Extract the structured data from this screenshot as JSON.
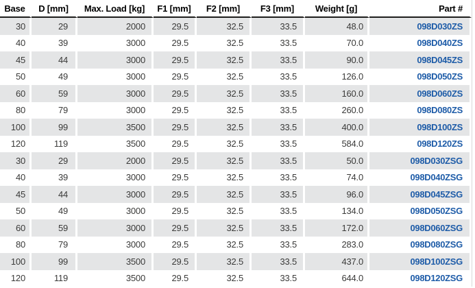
{
  "table": {
    "columns": [
      {
        "key": "base",
        "label": "Base"
      },
      {
        "key": "d",
        "label": "D [mm]"
      },
      {
        "key": "max_load",
        "label": "Max. Load [kg]"
      },
      {
        "key": "f1",
        "label": "F1 [mm]"
      },
      {
        "key": "f2",
        "label": "F2 [mm]"
      },
      {
        "key": "f3",
        "label": "F3 [mm]"
      },
      {
        "key": "weight",
        "label": "Weight [g]"
      },
      {
        "key": "part",
        "label": "Part #"
      }
    ],
    "rows": [
      {
        "base": "30",
        "d": "29",
        "max_load": "2000",
        "f1": "29.5",
        "f2": "32.5",
        "f3": "33.5",
        "weight": "48.0",
        "part": "098D030ZS"
      },
      {
        "base": "40",
        "d": "39",
        "max_load": "3000",
        "f1": "29.5",
        "f2": "32.5",
        "f3": "33.5",
        "weight": "70.0",
        "part": "098D040ZS"
      },
      {
        "base": "45",
        "d": "44",
        "max_load": "3000",
        "f1": "29.5",
        "f2": "32.5",
        "f3": "33.5",
        "weight": "90.0",
        "part": "098D045ZS"
      },
      {
        "base": "50",
        "d": "49",
        "max_load": "3000",
        "f1": "29.5",
        "f2": "32.5",
        "f3": "33.5",
        "weight": "126.0",
        "part": "098D050ZS"
      },
      {
        "base": "60",
        "d": "59",
        "max_load": "3000",
        "f1": "29.5",
        "f2": "32.5",
        "f3": "33.5",
        "weight": "160.0",
        "part": "098D060ZS"
      },
      {
        "base": "80",
        "d": "79",
        "max_load": "3000",
        "f1": "29.5",
        "f2": "32.5",
        "f3": "33.5",
        "weight": "260.0",
        "part": "098D080ZS"
      },
      {
        "base": "100",
        "d": "99",
        "max_load": "3500",
        "f1": "29.5",
        "f2": "32.5",
        "f3": "33.5",
        "weight": "400.0",
        "part": "098D100ZS"
      },
      {
        "base": "120",
        "d": "119",
        "max_load": "3500",
        "f1": "29.5",
        "f2": "32.5",
        "f3": "33.5",
        "weight": "584.0",
        "part": "098D120ZS"
      },
      {
        "base": "30",
        "d": "29",
        "max_load": "2000",
        "f1": "29.5",
        "f2": "32.5",
        "f3": "33.5",
        "weight": "50.0",
        "part": "098D030ZSG"
      },
      {
        "base": "40",
        "d": "39",
        "max_load": "3000",
        "f1": "29.5",
        "f2": "32.5",
        "f3": "33.5",
        "weight": "74.0",
        "part": "098D040ZSG"
      },
      {
        "base": "45",
        "d": "44",
        "max_load": "3000",
        "f1": "29.5",
        "f2": "32.5",
        "f3": "33.5",
        "weight": "96.0",
        "part": "098D045ZSG"
      },
      {
        "base": "50",
        "d": "49",
        "max_load": "3000",
        "f1": "29.5",
        "f2": "32.5",
        "f3": "33.5",
        "weight": "134.0",
        "part": "098D050ZSG"
      },
      {
        "base": "60",
        "d": "59",
        "max_load": "3000",
        "f1": "29.5",
        "f2": "32.5",
        "f3": "33.5",
        "weight": "172.0",
        "part": "098D060ZSG"
      },
      {
        "base": "80",
        "d": "79",
        "max_load": "3000",
        "f1": "29.5",
        "f2": "32.5",
        "f3": "33.5",
        "weight": "283.0",
        "part": "098D080ZSG"
      },
      {
        "base": "100",
        "d": "99",
        "max_load": "3500",
        "f1": "29.5",
        "f2": "32.5",
        "f3": "33.5",
        "weight": "437.0",
        "part": "098D100ZSG"
      },
      {
        "base": "120",
        "d": "119",
        "max_load": "3500",
        "f1": "29.5",
        "f2": "32.5",
        "f3": "33.5",
        "weight": "644.0",
        "part": "098D120ZSG"
      }
    ]
  },
  "colors": {
    "stripe": "#e4e5e6",
    "part_link": "#1e5ca8",
    "header_rule": "#1d1d1b"
  }
}
